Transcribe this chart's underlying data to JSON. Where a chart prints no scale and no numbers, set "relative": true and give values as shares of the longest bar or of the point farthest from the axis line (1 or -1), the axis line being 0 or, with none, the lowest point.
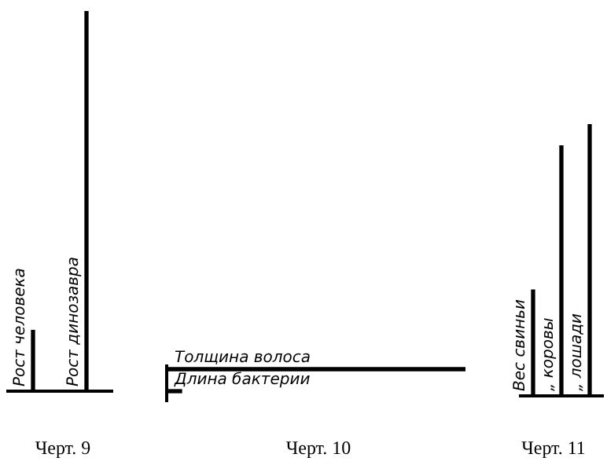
{
  "chart_data": [
    {
      "type": "bar",
      "title": "Черт. 9",
      "categories": [
        "Рост человека",
        "Рост динозавра"
      ],
      "values": [
        0.16,
        1
      ],
      "color": "#000000",
      "relative": true
    },
    {
      "type": "bar",
      "title": "Черт. 10",
      "orientation": "horizontal",
      "categories": [
        "Толщина волоса",
        "Длина бактерии"
      ],
      "values": [
        1,
        0.05
      ],
      "color": "#000000",
      "relative": true
    },
    {
      "type": "bar",
      "title": "Черт. 11",
      "categories": [
        "Вес свиньи",
        "„ коровы",
        "„ лошади"
      ],
      "values": [
        0.39,
        0.92,
        1
      ],
      "color": "#000000",
      "relative": true
    }
  ]
}
